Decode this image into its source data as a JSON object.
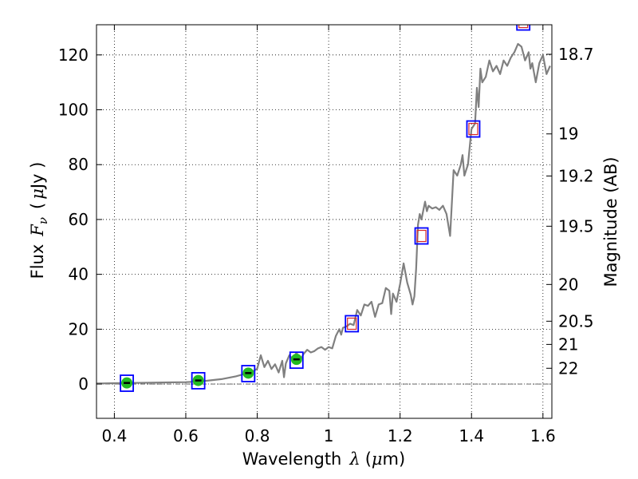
{
  "chart_data": {
    "type": "scatter",
    "title": "",
    "xlabel": "Wavelength",
    "xlabel_symbol": "λ",
    "xlabel_unit_open": "(",
    "xlabel_unit_mu": "μ",
    "xlabel_unit_rest": "m)",
    "ylabel": "Flux",
    "ylabel_symbol": "F",
    "ylabel_sub": "ν",
    "ylabel_unit_open": "(",
    "ylabel_unit_mu": "μ",
    "ylabel_unit_rest": "Jy )",
    "y2label": "Magnitude (AB)",
    "xlim": [
      0.35,
      1.625
    ],
    "ylim": [
      -12.5,
      131
    ],
    "grid": true,
    "x_ticks": [
      {
        "v": 0.4,
        "label": "0.4"
      },
      {
        "v": 0.6,
        "label": "0.6"
      },
      {
        "v": 0.8,
        "label": "0.8"
      },
      {
        "v": 1.0,
        "label": "1"
      },
      {
        "v": 1.2,
        "label": "1.2"
      },
      {
        "v": 1.4,
        "label": "1.4"
      },
      {
        "v": 1.6,
        "label": "1.6"
      }
    ],
    "y_ticks": [
      {
        "v": 0,
        "label": "0"
      },
      {
        "v": 20,
        "label": "20"
      },
      {
        "v": 40,
        "label": "40"
      },
      {
        "v": 60,
        "label": "60"
      },
      {
        "v": 80,
        "label": "80"
      },
      {
        "v": 100,
        "label": "100"
      },
      {
        "v": 120,
        "label": "120"
      }
    ],
    "mag_ticks": [
      {
        "mag": 18.7,
        "label": "18.7"
      },
      {
        "mag": 19.0,
        "label": "19"
      },
      {
        "mag": 19.2,
        "label": "19.2"
      },
      {
        "mag": 19.5,
        "label": "19.5"
      },
      {
        "mag": 20.0,
        "label": "20"
      },
      {
        "mag": 20.5,
        "label": "20.5"
      },
      {
        "mag": 21.0,
        "label": "21"
      },
      {
        "mag": 22.0,
        "label": "22"
      }
    ],
    "colors": {
      "spectrum": "#808080",
      "model_box": "#0000ff",
      "obs_box": "#d62728",
      "photometry": "#22bb22",
      "errorbar": "#000000",
      "zero_line": "#555555"
    },
    "series": [
      {
        "kind": "spectrum",
        "x": [
          0.35,
          0.4,
          0.45,
          0.5,
          0.55,
          0.6,
          0.63,
          0.66,
          0.7,
          0.72,
          0.74,
          0.76,
          0.78,
          0.79,
          0.8,
          0.81,
          0.82,
          0.83,
          0.84,
          0.85,
          0.86,
          0.87,
          0.875,
          0.88,
          0.89,
          0.9,
          0.91,
          0.92,
          0.93,
          0.94,
          0.95,
          0.96,
          0.97,
          0.98,
          0.99,
          1.0,
          1.01,
          1.02,
          1.03,
          1.035,
          1.04,
          1.05,
          1.06,
          1.07,
          1.08,
          1.09,
          1.1,
          1.11,
          1.12,
          1.13,
          1.14,
          1.15,
          1.16,
          1.17,
          1.175,
          1.18,
          1.19,
          1.2,
          1.21,
          1.22,
          1.23,
          1.235,
          1.24,
          1.245,
          1.25,
          1.255,
          1.26,
          1.27,
          1.275,
          1.28,
          1.29,
          1.3,
          1.31,
          1.32,
          1.33,
          1.34,
          1.35,
          1.36,
          1.37,
          1.375,
          1.38,
          1.385,
          1.39,
          1.4,
          1.41,
          1.415,
          1.42,
          1.425,
          1.43,
          1.44,
          1.45,
          1.46,
          1.47,
          1.48,
          1.49,
          1.5,
          1.51,
          1.52,
          1.53,
          1.54,
          1.55,
          1.56,
          1.565,
          1.57,
          1.58,
          1.59,
          1.6,
          1.61,
          1.62
        ],
        "y": [
          0.2,
          0.3,
          0.4,
          0.5,
          0.6,
          0.7,
          0.9,
          1.2,
          1.8,
          2.3,
          2.8,
          3.5,
          4.2,
          4.8,
          5.6,
          10.5,
          6.2,
          8.5,
          5.5,
          7.2,
          4.2,
          8.5,
          2.5,
          7.5,
          10.5,
          9.0,
          11.5,
          8.5,
          11.0,
          12.5,
          11.5,
          12.0,
          13.0,
          13.5,
          12.5,
          13.5,
          13.0,
          17.5,
          20.0,
          18.0,
          20.5,
          21.0,
          22.0,
          21.5,
          27.0,
          25.0,
          29.0,
          28.5,
          30.0,
          24.5,
          29.0,
          29.5,
          35.0,
          34.0,
          25.5,
          33.0,
          30.0,
          36.5,
          44.0,
          37.0,
          32.5,
          29.0,
          32.0,
          42.0,
          58.0,
          62.0,
          60.0,
          66.5,
          63.0,
          65.0,
          64.0,
          64.5,
          63.5,
          65.0,
          62.0,
          54.0,
          78.0,
          76.0,
          80.0,
          83.5,
          76.0,
          78.0,
          80.0,
          93.0,
          95.0,
          108.0,
          101.0,
          115.0,
          110.0,
          112.0,
          118.0,
          114.0,
          116.0,
          113.0,
          118.0,
          116.0,
          119.0,
          121.0,
          124.0,
          123.0,
          118.0,
          121.0,
          115.0,
          117.0,
          110.0,
          117.0,
          120.0,
          113.0,
          116.0
        ]
      },
      {
        "kind": "model",
        "x": [
          0.435,
          0.635,
          0.775,
          0.91,
          1.065,
          1.26,
          1.405,
          1.545
        ],
        "y": [
          0.3,
          1.2,
          3.8,
          8.7,
          22.0,
          54.0,
          93.0,
          132.0
        ]
      },
      {
        "kind": "observed",
        "x": [
          1.065,
          1.26,
          1.405,
          1.545
        ],
        "y": [
          22.0,
          54.0,
          93.0,
          132.0
        ]
      },
      {
        "kind": "photometry",
        "x": [
          0.435,
          0.635,
          0.775,
          0.91
        ],
        "y": [
          0.4,
          1.3,
          4.0,
          9.0
        ],
        "err": [
          0.2,
          0.2,
          0.3,
          0.4
        ]
      }
    ]
  }
}
